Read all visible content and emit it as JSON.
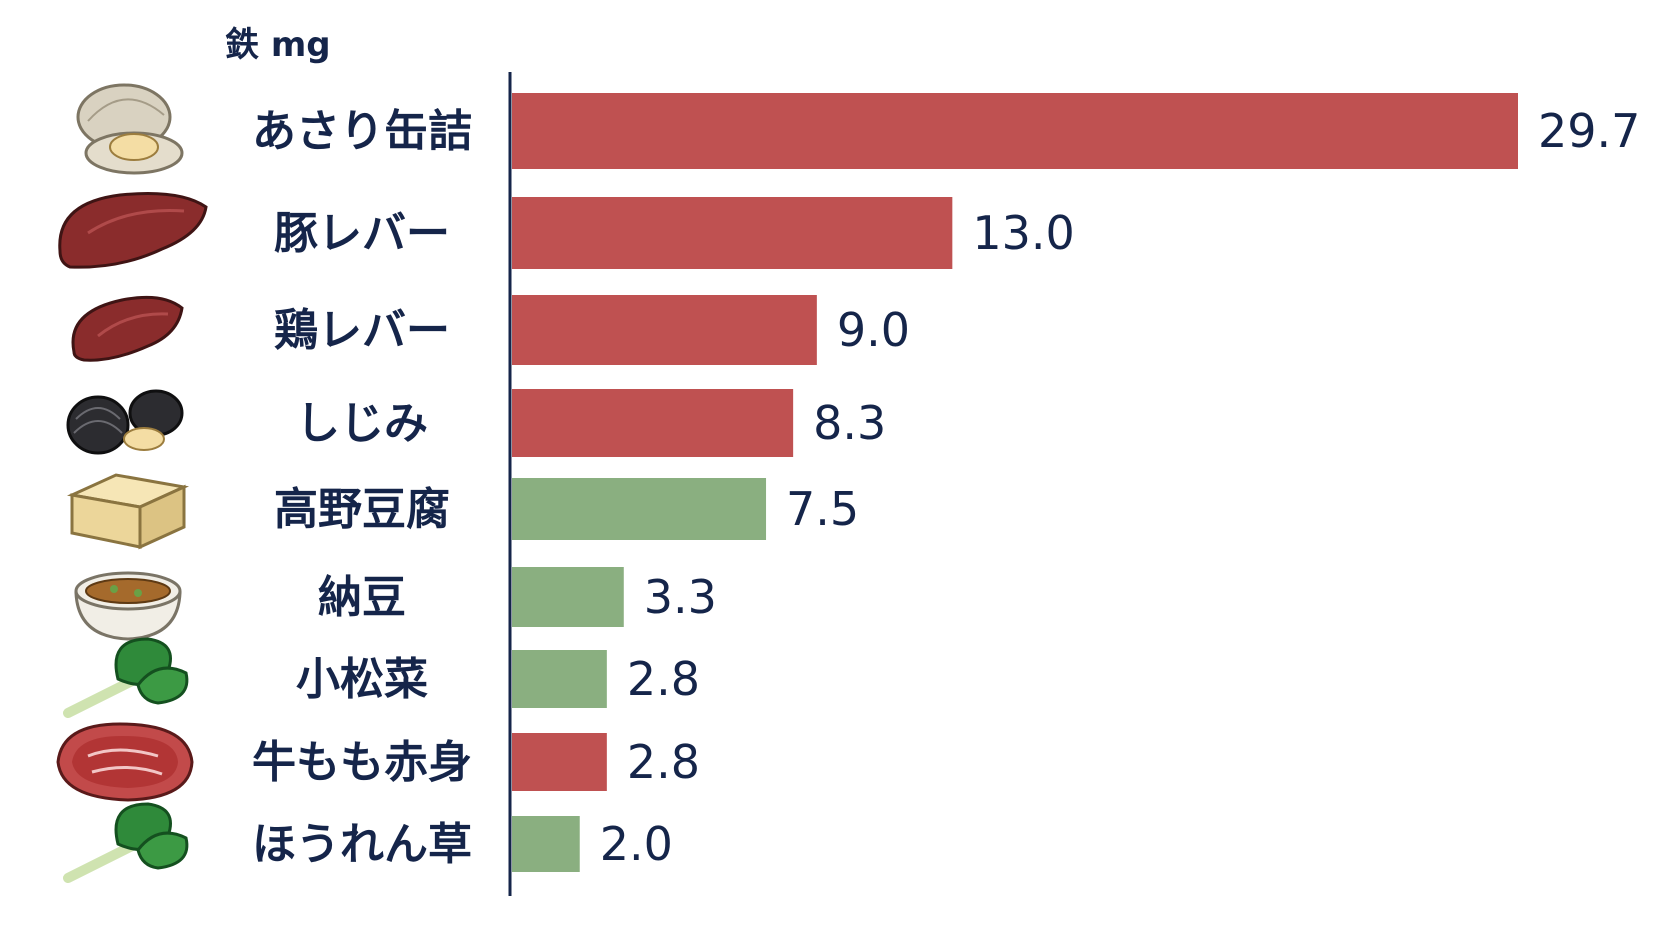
{
  "chart_data": {
    "type": "bar",
    "orientation": "horizontal",
    "unit_label": "鉄 mg",
    "categories": [
      "あさり缶詰",
      "豚レバー",
      "鶏レバー",
      "しじみ",
      "高野豆腐",
      "納豆",
      "小松菜",
      "牛もも赤身",
      "ほうれん草"
    ],
    "values": [
      29.7,
      13.0,
      9.0,
      8.3,
      7.5,
      3.3,
      2.8,
      2.8,
      2.0
    ],
    "value_labels": [
      "29.7",
      "13.0",
      "9.0",
      "8.3",
      "7.5",
      "3.3",
      "2.8",
      "2.8",
      "2.0"
    ],
    "bar_groups": [
      "animal",
      "animal",
      "animal",
      "animal",
      "plant",
      "plant",
      "plant",
      "animal",
      "plant"
    ],
    "icons": [
      "clam-icon",
      "pork-liver-icon",
      "chicken-liver-icon",
      "shijimi-clam-icon",
      "koya-tofu-icon",
      "natto-bowl-icon",
      "komatsuna-icon",
      "beef-steak-icon",
      "spinach-icon"
    ],
    "colors": {
      "animal": "#bf5151",
      "plant": "#8aaf80",
      "text": "#15254a",
      "axis": "#15254a"
    },
    "xlim": [
      0,
      29.7
    ],
    "grid": false,
    "legend": "none"
  }
}
